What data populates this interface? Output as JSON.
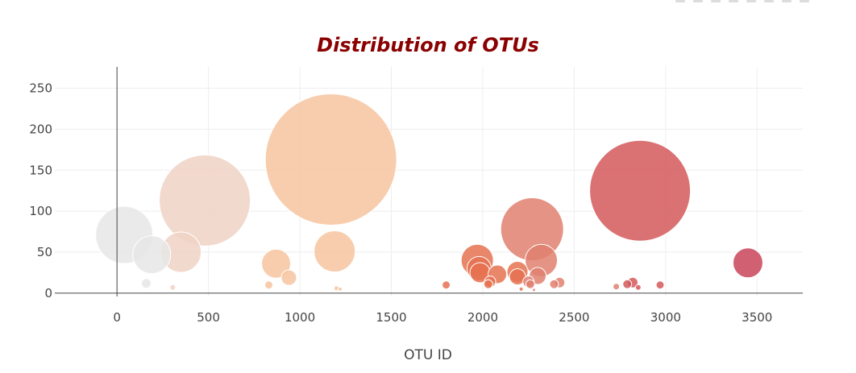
{
  "chart_data": {
    "type": "scatter",
    "title": "Distribution of OTUs",
    "xlabel": "OTU ID",
    "ylabel": "",
    "xlim": [
      -340,
      3750
    ],
    "ylim": [
      -4,
      276
    ],
    "x_ticks": [
      "0",
      "500",
      "1000",
      "1500",
      "2000",
      "2500",
      "3000",
      "3500"
    ],
    "y_ticks": [
      "0",
      "50",
      "100",
      "150",
      "200",
      "250"
    ],
    "grid": true,
    "legend": "none",
    "series": [
      {
        "x": [
          40,
          190,
          350,
          480,
          870,
          940,
          1170,
          1190,
          1200,
          1800,
          1970,
          1980,
          1985,
          2030,
          2080,
          2190,
          2270,
          2300,
          2320,
          2390,
          2420,
          2730,
          2790,
          2820,
          2860,
          2970,
          3450,
          160,
          305,
          830,
          1220,
          2040,
          2190,
          2250,
          2260,
          2280,
          2210,
          2850
        ],
        "y": [
          71,
          47,
          50,
          113,
          36,
          19,
          163,
          51,
          6,
          10,
          40,
          30,
          25,
          11,
          23,
          26,
          78,
          21,
          40,
          11,
          13,
          8,
          11,
          13,
          125,
          10,
          37,
          12,
          7,
          10,
          5,
          14,
          20,
          14,
          11,
          4,
          5,
          7
        ],
        "values": [
          71,
          47,
          50,
          113,
          36,
          19,
          163,
          51,
          6,
          10,
          40,
          30,
          25,
          11,
          23,
          26,
          78,
          21,
          40,
          11,
          13,
          8,
          11,
          13,
          125,
          10,
          37,
          12,
          7,
          10,
          5,
          14,
          20,
          14,
          11,
          4,
          5,
          7
        ]
      }
    ]
  },
  "colors": {
    "title": "#8b0000",
    "axis": "#444444",
    "grid": "#eeeeee",
    "marker_outline": "#ffffff",
    "colorscale": [
      "#e6e6e6",
      "#f0d2c4",
      "#f6c49f",
      "#ec9e80",
      "#e57251",
      "#e0806e",
      "#d4585a",
      "#c9445a"
    ]
  }
}
